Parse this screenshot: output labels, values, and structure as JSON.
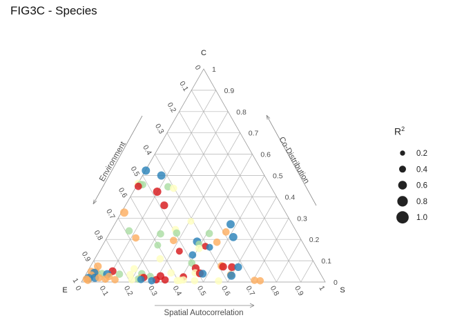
{
  "title": "FIG3C - Species",
  "chart_data": {
    "type": "scatter",
    "subtype": "ternary",
    "vertices": {
      "top": "C",
      "left": "E",
      "right": "S"
    },
    "axis_labels": {
      "left_side": "Environment",
      "right_side": "Co-Distribution",
      "bottom": "Spatial Autocorrelation"
    },
    "ticks": [
      "0",
      "0.1",
      "0.2",
      "0.3",
      "0.4",
      "0.5",
      "0.6",
      "0.7",
      "0.8",
      "0.9",
      "1"
    ],
    "grid": true,
    "size_legend": {
      "title_base": "R",
      "title_sup": "2",
      "values": [
        0.2,
        0.4,
        0.6,
        0.8,
        1.0
      ],
      "labels": [
        "0.2",
        "0.4",
        "0.6",
        "0.8",
        "1.0"
      ],
      "placement": "right"
    },
    "colors": {
      "dark_red": "#d7191c",
      "orange": "#fdae61",
      "pale_yellow": "#ffffbf",
      "light_green": "#abdda4",
      "blue": "#2b83ba"
    },
    "points": [
      {
        "c": 0.523,
        "s": 0.002,
        "r2": 0.55,
        "color": "blue"
      },
      {
        "c": 0.5,
        "s": 0.077,
        "r2": 0.55,
        "color": "blue"
      },
      {
        "c": 0.463,
        "s": 0.001,
        "r2": 0.45,
        "color": "pale_yellow"
      },
      {
        "c": 0.458,
        "s": 0.012,
        "r2": 0.45,
        "color": "light_green"
      },
      {
        "c": 0.457,
        "s": 0.022,
        "r2": 0.45,
        "color": "light_green"
      },
      {
        "c": 0.449,
        "s": 0.008,
        "r2": 0.45,
        "color": "dark_red"
      },
      {
        "c": 0.447,
        "s": 0.131,
        "r2": 0.45,
        "color": "light_green"
      },
      {
        "c": 0.44,
        "s": 0.157,
        "r2": 0.45,
        "color": "pale_yellow"
      },
      {
        "c": 0.424,
        "s": 0.098,
        "r2": 0.55,
        "color": "dark_red"
      },
      {
        "c": 0.36,
        "s": 0.159,
        "r2": 0.5,
        "color": "dark_red"
      },
      {
        "c": 0.326,
        "s": 0.012,
        "r2": 0.55,
        "color": "orange"
      },
      {
        "c": 0.285,
        "s": 0.306,
        "r2": 0.4,
        "color": "pale_yellow"
      },
      {
        "c": 0.271,
        "s": 0.476,
        "r2": 0.55,
        "color": "blue"
      },
      {
        "c": 0.246,
        "s": 0.262,
        "r2": 0.45,
        "color": "pale_yellow"
      },
      {
        "c": 0.24,
        "s": 0.075,
        "r2": 0.45,
        "color": "light_green"
      },
      {
        "c": 0.235,
        "s": 0.475,
        "r2": 0.45,
        "color": "orange"
      },
      {
        "c": 0.23,
        "s": 0.275,
        "r2": 0.45,
        "color": "light_green"
      },
      {
        "c": 0.228,
        "s": 0.41,
        "r2": 0.45,
        "color": "light_green"
      },
      {
        "c": 0.226,
        "s": 0.211,
        "r2": 0.45,
        "color": "light_green"
      },
      {
        "c": 0.211,
        "s": 0.517,
        "r2": 0.55,
        "color": "blue"
      },
      {
        "c": 0.207,
        "s": 0.119,
        "r2": 0.45,
        "color": "orange"
      },
      {
        "c": 0.195,
        "s": 0.28,
        "r2": 0.45,
        "color": "orange"
      },
      {
        "c": 0.19,
        "s": 0.379,
        "r2": 0.55,
        "color": "blue"
      },
      {
        "c": 0.187,
        "s": 0.462,
        "r2": 0.45,
        "color": "orange"
      },
      {
        "c": 0.178,
        "s": 0.393,
        "r2": 0.4,
        "color": "light_green"
      },
      {
        "c": 0.173,
        "s": 0.226,
        "r2": 0.4,
        "color": "light_green"
      },
      {
        "c": 0.168,
        "s": 0.424,
        "r2": 0.4,
        "color": "dark_red"
      },
      {
        "c": 0.163,
        "s": 0.444,
        "r2": 0.4,
        "color": "blue"
      },
      {
        "c": 0.158,
        "s": 0.403,
        "r2": 0.45,
        "color": "pale_yellow"
      },
      {
        "c": 0.145,
        "s": 0.329,
        "r2": 0.4,
        "color": "dark_red"
      },
      {
        "c": 0.127,
        "s": 0.392,
        "r2": 0.45,
        "color": "blue"
      },
      {
        "c": 0.109,
        "s": 0.268,
        "r2": 0.45,
        "color": "pale_yellow"
      },
      {
        "c": 0.089,
        "s": 0.408,
        "r2": 0.45,
        "color": "light_green"
      },
      {
        "c": 0.075,
        "s": 0.537,
        "r2": 0.5,
        "color": "orange"
      },
      {
        "c": 0.074,
        "s": 0.03,
        "r2": 0.5,
        "color": "orange"
      },
      {
        "c": 0.072,
        "s": 0.545,
        "r2": 0.5,
        "color": "dark_red"
      },
      {
        "c": 0.07,
        "s": 0.582,
        "r2": 0.5,
        "color": "dark_red"
      },
      {
        "c": 0.07,
        "s": 0.608,
        "r2": 0.5,
        "color": "blue"
      },
      {
        "c": 0.065,
        "s": 0.436,
        "r2": 0.5,
        "color": "dark_red"
      },
      {
        "c": 0.062,
        "s": 0.185,
        "r2": 0.45,
        "color": "pale_yellow"
      },
      {
        "c": 0.051,
        "s": 0.102,
        "r2": 0.5,
        "color": "dark_red"
      },
      {
        "c": 0.05,
        "s": 0.015,
        "r2": 0.45,
        "color": "orange"
      },
      {
        "c": 0.047,
        "s": 0.036,
        "r2": 0.45,
        "color": "orange"
      },
      {
        "c": 0.043,
        "s": 0.031,
        "r2": 0.55,
        "color": "blue"
      },
      {
        "c": 0.043,
        "s": 0.346,
        "r2": 0.45,
        "color": "pale_yellow"
      },
      {
        "c": 0.043,
        "s": 0.445,
        "r2": 0.45,
        "color": "pale_yellow"
      },
      {
        "c": 0.041,
        "s": 0.465,
        "r2": 0.5,
        "color": "dark_red"
      },
      {
        "c": 0.04,
        "s": 0.064,
        "r2": 0.45,
        "color": "light_green"
      },
      {
        "c": 0.039,
        "s": 0.228,
        "r2": 0.45,
        "color": "light_green"
      },
      {
        "c": 0.039,
        "s": 0.478,
        "r2": 0.5,
        "color": "blue"
      },
      {
        "c": 0.037,
        "s": 0.087,
        "r2": 0.55,
        "color": "blue"
      },
      {
        "c": 0.037,
        "s": 0.137,
        "r2": 0.45,
        "color": "light_green"
      },
      {
        "c": 0.035,
        "s": 0.182,
        "r2": 0.45,
        "color": "pale_yellow"
      },
      {
        "c": 0.033,
        "s": 0.024,
        "r2": 0.45,
        "color": "orange"
      },
      {
        "c": 0.034,
        "s": 0.595,
        "r2": 0.45,
        "color": "orange"
      },
      {
        "c": 0.03,
        "s": 0.6,
        "r2": 0.55,
        "color": "blue"
      },
      {
        "c": 0.028,
        "s": 0.31,
        "r2": 0.5,
        "color": "dark_red"
      },
      {
        "c": 0.026,
        "s": 0.1,
        "r2": 0.45,
        "color": "orange"
      },
      {
        "c": 0.026,
        "s": 0.269,
        "r2": 0.45,
        "color": "light_green"
      },
      {
        "c": 0.024,
        "s": 0.406,
        "r2": 0.45,
        "color": "dark_red"
      },
      {
        "c": 0.021,
        "s": 0.236,
        "r2": 0.45,
        "color": "orange"
      },
      {
        "c": 0.021,
        "s": 0.245,
        "r2": 0.45,
        "color": "dark_red"
      },
      {
        "c": 0.02,
        "s": 0.045,
        "r2": 0.55,
        "color": "blue"
      },
      {
        "c": 0.02,
        "s": 0.062,
        "r2": 0.45,
        "color": "orange"
      },
      {
        "c": 0.018,
        "s": 0.02,
        "r2": 0.6,
        "color": "blue"
      },
      {
        "c": 0.014,
        "s": 0.013,
        "r2": 0.45,
        "color": "orange"
      },
      {
        "c": 0.014,
        "s": 0.091,
        "r2": 0.45,
        "color": "orange"
      },
      {
        "c": 0.014,
        "s": 0.226,
        "r2": 0.45,
        "color": "light_green"
      },
      {
        "c": 0.011,
        "s": 0.132,
        "r2": 0.45,
        "color": "orange"
      },
      {
        "c": 0.011,
        "s": 0.201,
        "r2": 0.45,
        "color": "pale_yellow"
      },
      {
        "c": 0.012,
        "s": 0.238,
        "r2": 0.45,
        "color": "blue"
      },
      {
        "c": 0.011,
        "s": 0.301,
        "r2": 0.45,
        "color": "dark_red"
      },
      {
        "c": 0.01,
        "s": 0.338,
        "r2": 0.45,
        "color": "dark_red"
      },
      {
        "c": 0.007,
        "s": 0.39,
        "r2": 0.45,
        "color": "pale_yellow"
      },
      {
        "c": 0.008,
        "s": 0.401,
        "r2": 0.45,
        "color": "pale_yellow"
      },
      {
        "c": 0.01,
        "s": 0.413,
        "r2": 0.45,
        "color": "pale_yellow"
      },
      {
        "c": 0.006,
        "s": 0.461,
        "r2": 0.45,
        "color": "pale_yellow"
      },
      {
        "c": 0.005,
        "s": 0.56,
        "r2": 0.45,
        "color": "pale_yellow"
      },
      {
        "c": 0.008,
        "s": 0.022,
        "r2": 0.45,
        "color": "orange"
      },
      {
        "c": 0.006,
        "s": 0.285,
        "r2": 0.45,
        "color": "blue"
      },
      {
        "c": 0.008,
        "s": 0.706,
        "r2": 0.45,
        "color": "orange"
      },
      {
        "c": 0.006,
        "s": 0.73,
        "r2": 0.45,
        "color": "orange"
      }
    ]
  }
}
